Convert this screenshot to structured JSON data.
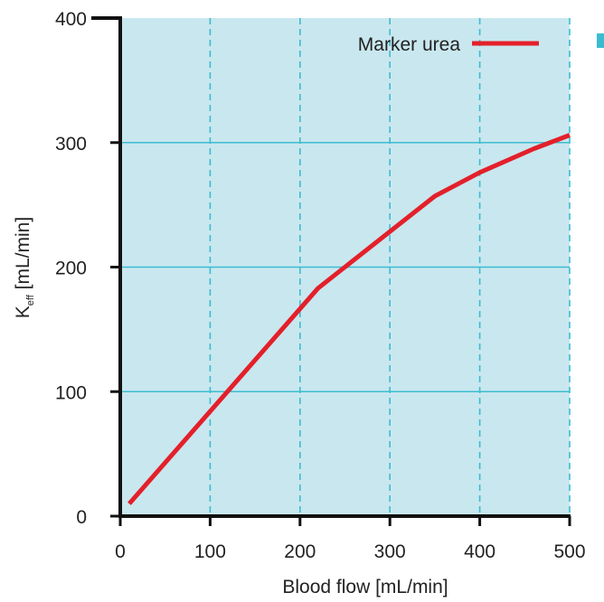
{
  "colors": {
    "plot_background": "#c9e7ef",
    "gridline": "#3bbcd0",
    "axis": "#111111",
    "series": "#e3202a",
    "corner_swatch": "#3bbcd0"
  },
  "chart_data": {
    "type": "line",
    "xlabel": "Blood flow [mL/min]",
    "ylabel": {
      "main": "K",
      "subscript": "eff",
      "unit": " [mL/min]"
    },
    "xlim": [
      0,
      500
    ],
    "ylim": [
      0,
      400
    ],
    "x_ticks": [
      "0",
      "100",
      "200",
      "300",
      "400",
      "500"
    ],
    "y_ticks": [
      "0",
      "100",
      "200",
      "300",
      "400"
    ],
    "x_grid": "dashed",
    "y_grid": "solid",
    "legend_position": "top-right",
    "series": [
      {
        "name": "Marker urea",
        "x": [
          10,
          220,
          350,
          400,
          460,
          500
        ],
        "y": [
          10,
          183,
          257,
          276,
          295,
          306
        ]
      }
    ]
  }
}
